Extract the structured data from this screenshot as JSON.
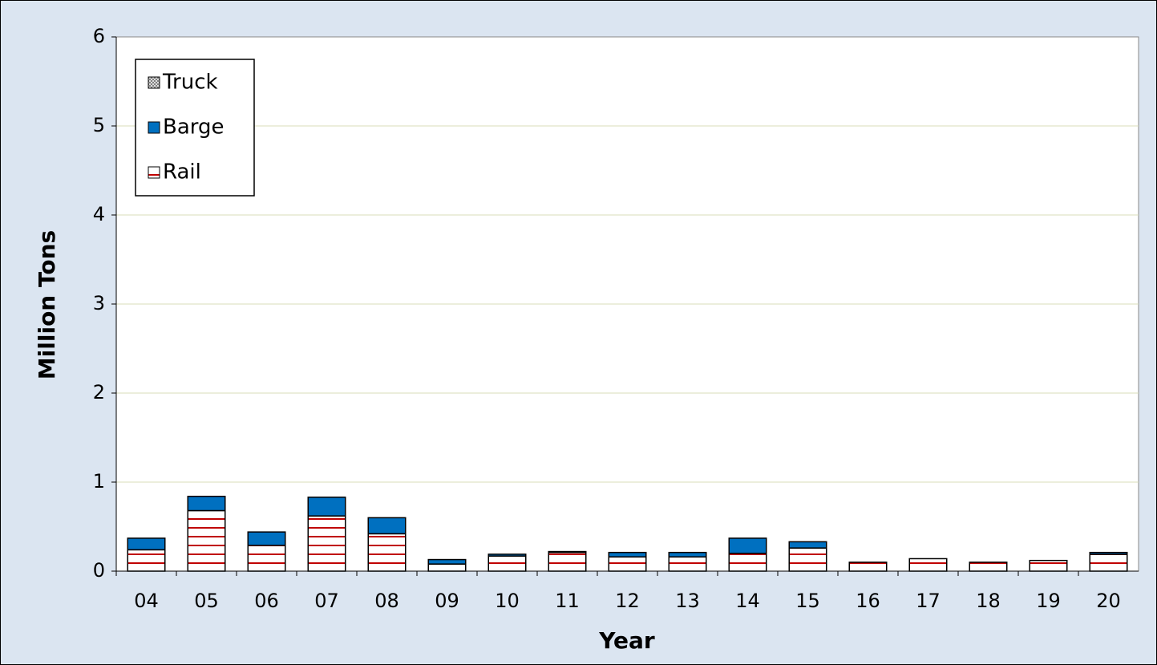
{
  "chart_data": {
    "type": "stacked_bar",
    "x_label": "Year",
    "y_label": "Million Tons",
    "categories": [
      "04",
      "05",
      "06",
      "07",
      "08",
      "09",
      "10",
      "11",
      "12",
      "13",
      "14",
      "15",
      "16",
      "17",
      "18",
      "19",
      "20"
    ],
    "series": [
      {
        "name": "Rail",
        "color": "#c00000",
        "values": [
          0.24,
          0.68,
          0.29,
          0.62,
          0.42,
          0.08,
          0.17,
          0.21,
          0.16,
          0.16,
          0.2,
          0.26,
          0.1,
          0.14,
          0.1,
          0.12,
          0.19
        ]
      },
      {
        "name": "Barge",
        "color": "#0070c0",
        "values": [
          0.13,
          0.16,
          0.15,
          0.21,
          0.18,
          0.05,
          0.02,
          0.01,
          0.05,
          0.05,
          0.17,
          0.07,
          0,
          0,
          0,
          0,
          0.02
        ]
      },
      {
        "name": "Truck",
        "color": "#808080",
        "values": [
          0,
          0,
          0,
          0,
          0,
          0,
          0,
          0,
          0,
          0,
          0,
          0,
          0,
          0,
          0,
          0,
          0
        ]
      }
    ],
    "ylim": [
      0,
      6
    ],
    "yticks": [
      0,
      1,
      2,
      3,
      4,
      5,
      6
    ],
    "grid": true,
    "legend": "top-left"
  }
}
